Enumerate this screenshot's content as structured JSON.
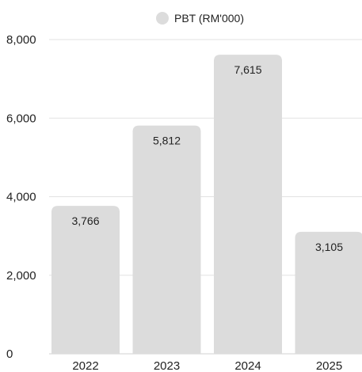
{
  "chart_data": {
    "type": "bar",
    "categories": [
      "2022",
      "2023",
      "2024",
      "2025"
    ],
    "series": [
      {
        "name": "PBT (RM'000)",
        "values": [
          3766,
          5812,
          7615,
          3105
        ],
        "value_labels": [
          "3,766",
          "5,812",
          "7,615",
          "3,105"
        ],
        "color": "#dcdcdc"
      }
    ],
    "ylim": [
      0,
      8000
    ],
    "yticks": [
      0,
      2000,
      4000,
      6000,
      8000
    ],
    "ytick_labels": [
      "0",
      "2,000",
      "4,000",
      "6,000",
      "8,000"
    ],
    "grid": true,
    "legend_position": "top-center",
    "colors": {
      "bar": "#dcdcdc",
      "grid": "#e2e2e2",
      "text": "#222222",
      "axis": "#d0d0d0"
    }
  }
}
